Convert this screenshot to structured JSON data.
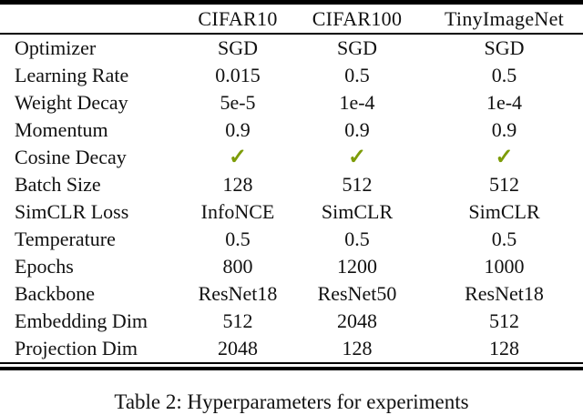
{
  "table": {
    "check_color": "#7d9c08",
    "columns": [
      "CIFAR10",
      "CIFAR100",
      "TinyImageNet"
    ],
    "rows": [
      {
        "label": "Optimizer",
        "values": [
          "SGD",
          "SGD",
          "SGD"
        ]
      },
      {
        "label": "Learning Rate",
        "values": [
          "0.015",
          "0.5",
          "0.5"
        ]
      },
      {
        "label": "Weight Decay",
        "values": [
          "5e-5",
          "1e-4",
          "1e-4"
        ]
      },
      {
        "label": "Momentum",
        "values": [
          "0.9",
          "0.9",
          "0.9"
        ]
      },
      {
        "label": "Cosine Decay",
        "values": [
          "✓",
          "✓",
          "✓"
        ]
      },
      {
        "label": "Batch Size",
        "values": [
          "128",
          "512",
          "512"
        ]
      },
      {
        "label": "SimCLR Loss",
        "values": [
          "InfoNCE",
          "SimCLR",
          "SimCLR"
        ]
      },
      {
        "label": "Temperature",
        "values": [
          "0.5",
          "0.5",
          "0.5"
        ]
      },
      {
        "label": "Epochs",
        "values": [
          "800",
          "1200",
          "1000"
        ]
      },
      {
        "label": "Backbone",
        "values": [
          "ResNet18",
          "ResNet50",
          "ResNet18"
        ]
      },
      {
        "label": "Embedding Dim",
        "values": [
          "512",
          "2048",
          "512"
        ]
      },
      {
        "label": "Projection Dim",
        "values": [
          "2048",
          "128",
          "128"
        ]
      }
    ]
  },
  "caption": "Table 2: Hyperparameters for experiments"
}
